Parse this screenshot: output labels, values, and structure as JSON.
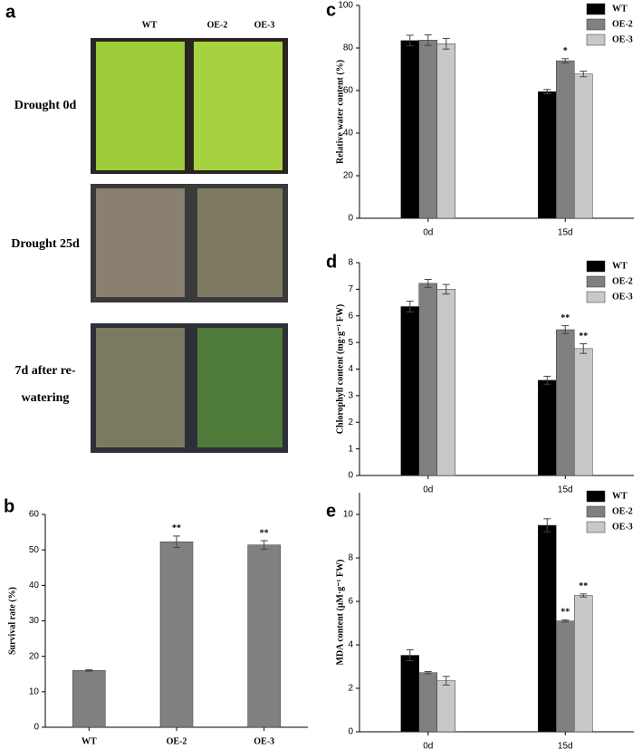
{
  "photo_panel": {
    "label": "a",
    "columns": [
      "WT",
      "OE-2",
      "OE-3"
    ],
    "rows": [
      "Drought 0d",
      "Drought 25d",
      "7d after re-watering"
    ]
  },
  "chart_data": [
    {
      "type": "bar",
      "panel_label": "b",
      "ylabel": "Survival rate (%)",
      "categories": [
        "WT",
        "OE-2",
        "OE-3"
      ],
      "values": [
        16,
        52.3,
        51.4
      ],
      "errors": [
        0.2,
        1.6,
        1.2
      ],
      "annotations": [
        null,
        "**",
        "**"
      ],
      "color": "#808080",
      "ylim": [
        0,
        60
      ],
      "yticks": [
        0,
        10,
        20,
        30,
        40,
        50,
        60
      ]
    },
    {
      "type": "bar",
      "panel_label": "c",
      "ylabel": "Relative water content (%)",
      "categories": [
        "0d",
        "15d"
      ],
      "series": [
        {
          "name": "WT",
          "color": "#000000",
          "values": [
            83.5,
            59.5
          ],
          "errors": [
            2.5,
            1
          ],
          "annotations": [
            null,
            null
          ]
        },
        {
          "name": "OE-2",
          "color": "#808080",
          "values": [
            83.7,
            74
          ],
          "errors": [
            2.5,
            1
          ],
          "annotations": [
            null,
            "*"
          ]
        },
        {
          "name": "OE-3",
          "color": "#c8c8c8",
          "values": [
            82,
            67.8
          ],
          "errors": [
            2.5,
            1.3
          ],
          "annotations": [
            null,
            null
          ]
        }
      ],
      "ylim": [
        0,
        100
      ],
      "yticks": [
        0,
        20,
        40,
        60,
        80,
        100
      ],
      "legend": "upper right"
    },
    {
      "type": "bar",
      "panel_label": "d",
      "ylabel": "Chlorophyll content (mg·g⁻¹ FW)",
      "categories": [
        "0d",
        "15d"
      ],
      "series": [
        {
          "name": "WT",
          "color": "#000000",
          "values": [
            6.35,
            3.58
          ],
          "errors": [
            0.2,
            0.15
          ],
          "annotations": [
            null,
            null
          ]
        },
        {
          "name": "OE-2",
          "color": "#808080",
          "values": [
            7.22,
            5.48
          ],
          "errors": [
            0.15,
            0.15
          ],
          "annotations": [
            null,
            "**"
          ]
        },
        {
          "name": "OE-3",
          "color": "#c8c8c8",
          "values": [
            7.0,
            4.77
          ],
          "errors": [
            0.18,
            0.18
          ],
          "annotations": [
            null,
            "**"
          ]
        }
      ],
      "ylim": [
        0,
        8
      ],
      "yticks": [
        0,
        1,
        2,
        3,
        4,
        5,
        6,
        7,
        8
      ],
      "legend": "upper right"
    },
    {
      "type": "bar",
      "panel_label": "e",
      "ylabel": "MDA content (μM·g⁻¹ FW)",
      "categories": [
        "0d",
        "15d"
      ],
      "series": [
        {
          "name": "WT",
          "color": "#000000",
          "values": [
            3.52,
            9.5
          ],
          "errors": [
            0.25,
            0.3
          ],
          "annotations": [
            null,
            null
          ]
        },
        {
          "name": "OE-2",
          "color": "#808080",
          "values": [
            2.72,
            5.1
          ],
          "errors": [
            0.05,
            0.05
          ],
          "annotations": [
            null,
            "**"
          ]
        },
        {
          "name": "OE-3",
          "color": "#c8c8c8",
          "values": [
            2.35,
            6.27
          ],
          "errors": [
            0.2,
            0.07
          ],
          "annotations": [
            null,
            "**"
          ]
        }
      ],
      "ylim": [
        0,
        11
      ],
      "yticks": [
        0,
        2,
        4,
        6,
        8,
        10
      ],
      "legend": "upper right"
    }
  ]
}
